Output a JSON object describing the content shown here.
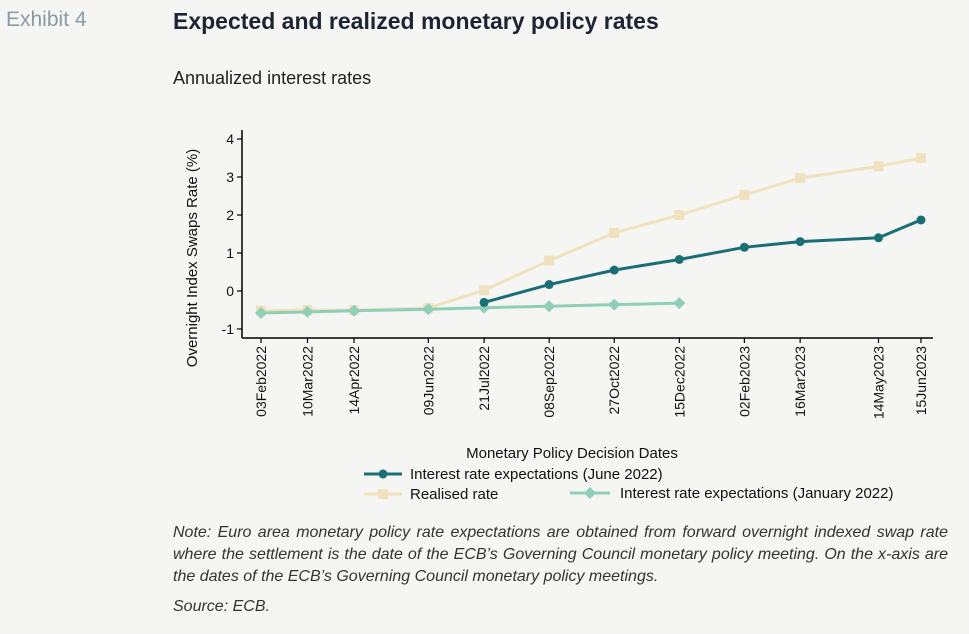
{
  "header": {
    "exhibit": "Exhibit 4",
    "title": "Expected and realized monetary policy rates",
    "subtitle": "Annualized interest rates"
  },
  "footer": {
    "note": "Note: Euro area monetary policy rate expectations are obtained from forward overnight indexed swap rate where the settlement is the date of the ECB’s Governing Council monetary policy meeting. On the x-axis are the dates of the ECB’s Governing Council monetary policy meetings.",
    "source": "Source: ECB."
  },
  "colors": {
    "realised": "#f0e2bf",
    "june": "#1a6f77",
    "january": "#8fcfb5",
    "axis": "#000000",
    "background": "#f5f5f3"
  },
  "chart_data": {
    "type": "line",
    "xlabel": "Monetary Policy Decision Dates",
    "ylabel": "Overnight Index Swaps Rate (%)",
    "ylim": [
      -1,
      4
    ],
    "yticks": [
      -1,
      0,
      1,
      2,
      3,
      4
    ],
    "x": [
      "03Feb2022",
      "10Mar2022",
      "14Apr2022",
      "09Jun2022",
      "21Jul2022",
      "08Sep2022",
      "27Oct2022",
      "15Dec2022",
      "02Feb2023",
      "16Mar2023",
      "14May2023",
      "15Jun2023"
    ],
    "x_dates": [
      "2022-02-03",
      "2022-03-10",
      "2022-04-14",
      "2022-06-09",
      "2022-07-21",
      "2022-09-08",
      "2022-10-27",
      "2022-12-15",
      "2023-02-02",
      "2023-03-16",
      "2023-05-14",
      "2023-06-15"
    ],
    "grid": false,
    "legend_position": "bottom",
    "series": [
      {
        "name": "Interest rate expectations (June 2022)",
        "color_key": "june",
        "marker": "circle",
        "values": [
          null,
          null,
          null,
          null,
          -0.3,
          0.17,
          0.55,
          0.83,
          1.15,
          1.3,
          1.4,
          1.87
        ]
      },
      {
        "name": "Realised rate",
        "color_key": "realised",
        "marker": "square",
        "values": [
          -0.52,
          -0.5,
          -0.5,
          -0.45,
          0.02,
          0.8,
          1.53,
          2.0,
          2.53,
          2.97,
          3.28,
          3.5
        ]
      },
      {
        "name": "Interest rate expectations (January 2022)",
        "color_key": "january",
        "marker": "diamond",
        "values": [
          -0.58,
          -0.55,
          -0.52,
          -0.48,
          -0.44,
          -0.4,
          -0.36,
          -0.32,
          null,
          null,
          null,
          null
        ]
      }
    ]
  }
}
